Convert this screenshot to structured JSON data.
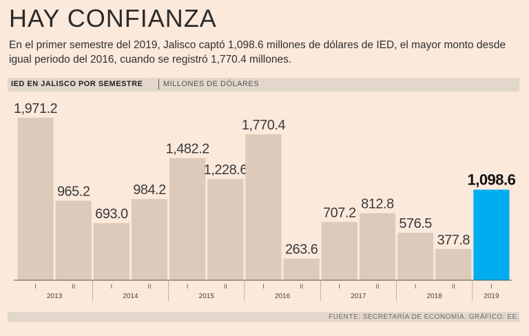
{
  "header": {
    "title": "HAY CONFIANZA",
    "subtitle": "En el primer semestre del 2019, Jalisco captó 1,098.6 millones de dólares de IED, el mayor monto desde igual periodo del 2016, cuando se registró 1,770.4 millones."
  },
  "strip": {
    "main": "IED EN JALISCO POR SEMESTRE",
    "unit": "MILLONES DE DÓLARES"
  },
  "footer": {
    "source": "FUENTE: SECRETARÍA DE ECONOMÍA. GRÁFICO: EE."
  },
  "colors": {
    "bar": "#dccbbb",
    "highlight": "#00aeef",
    "axis": "#555555"
  },
  "chart_data": {
    "type": "bar",
    "title": "IED EN JALISCO POR SEMESTRE",
    "ylabel": "MILLONES DE DÓLARES",
    "ylim": [
      0,
      1971.2
    ],
    "years": [
      "2013",
      "2014",
      "2015",
      "2016",
      "2017",
      "2018",
      "2019"
    ],
    "bars": [
      {
        "year": "2013",
        "semester": "I",
        "value": 1971.2,
        "label": "1,971.2"
      },
      {
        "year": "2013",
        "semester": "II",
        "value": 965.2,
        "label": "965.2"
      },
      {
        "year": "2014",
        "semester": "I",
        "value": 693.0,
        "label": "693.0"
      },
      {
        "year": "2014",
        "semester": "II",
        "value": 984.2,
        "label": "984.2"
      },
      {
        "year": "2015",
        "semester": "I",
        "value": 1482.2,
        "label": "1,482.2"
      },
      {
        "year": "2015",
        "semester": "II",
        "value": 1228.6,
        "label": "1,228.6"
      },
      {
        "year": "2016",
        "semester": "I",
        "value": 1770.4,
        "label": "1,770.4"
      },
      {
        "year": "2016",
        "semester": "II",
        "value": 263.6,
        "label": "263.6"
      },
      {
        "year": "2017",
        "semester": "I",
        "value": 707.2,
        "label": "707.2"
      },
      {
        "year": "2017",
        "semester": "II",
        "value": 812.8,
        "label": "812.8"
      },
      {
        "year": "2018",
        "semester": "I",
        "value": 576.5,
        "label": "576.5"
      },
      {
        "year": "2018",
        "semester": "II",
        "value": 377.8,
        "label": "377.8"
      },
      {
        "year": "2019",
        "semester": "I",
        "value": 1098.6,
        "label": "1,098.6",
        "highlight": true
      }
    ]
  }
}
